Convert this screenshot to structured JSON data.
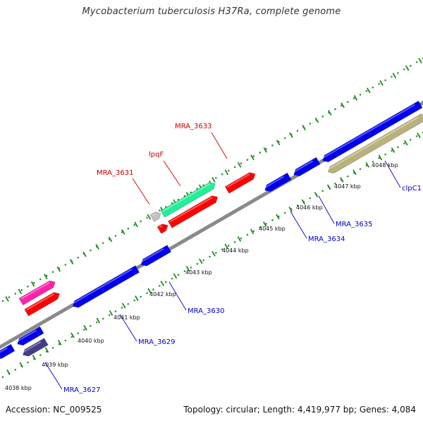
{
  "title": "Mycobacterium tuberculosis H37Ra, complete genome",
  "footer": {
    "accession": "Accession: NC_009525",
    "summary": "Topology: circular; Length: 4,419,977 bp; Genes: 4,084"
  },
  "colors": {
    "backbone": "#8a8a8a",
    "dots": "#339933",
    "ticks": "#1a8a1a",
    "label_forward": "#cc0000",
    "label_reverse": "#0000cc",
    "gene_red": "#ff0000",
    "gene_blue": "#0000ee",
    "gene_magenta": "#ff22aa",
    "gene_navy": "#443c88",
    "gene_teal": "#22ee99",
    "gene_grey": "#c0c0c0",
    "gene_olive": "#b8b27a"
  },
  "scale_labels": [
    "4038 kbp",
    "4039 kbp",
    "4040 kbp",
    "4041 kbp",
    "4042 kbp",
    "4043 kbp",
    "4044 kbp",
    "4045 kbp",
    "4046 kbp",
    "4047 kbp",
    "4048 kbp"
  ],
  "gene_labels": [
    {
      "text": "MRA_3633",
      "strand": "forward"
    },
    {
      "text": "lpqF",
      "strand": "forward"
    },
    {
      "text": "MRA_3631",
      "strand": "forward"
    },
    {
      "text": "MRA_3635",
      "strand": "reverse"
    },
    {
      "text": "MRA_3634",
      "strand": "reverse"
    },
    {
      "text": "clpC1",
      "strand": "reverse"
    },
    {
      "text": "MRA_3630",
      "strand": "reverse"
    },
    {
      "text": "MRA_3629",
      "strand": "reverse"
    },
    {
      "text": "MRA_3627",
      "strand": "reverse"
    }
  ]
}
